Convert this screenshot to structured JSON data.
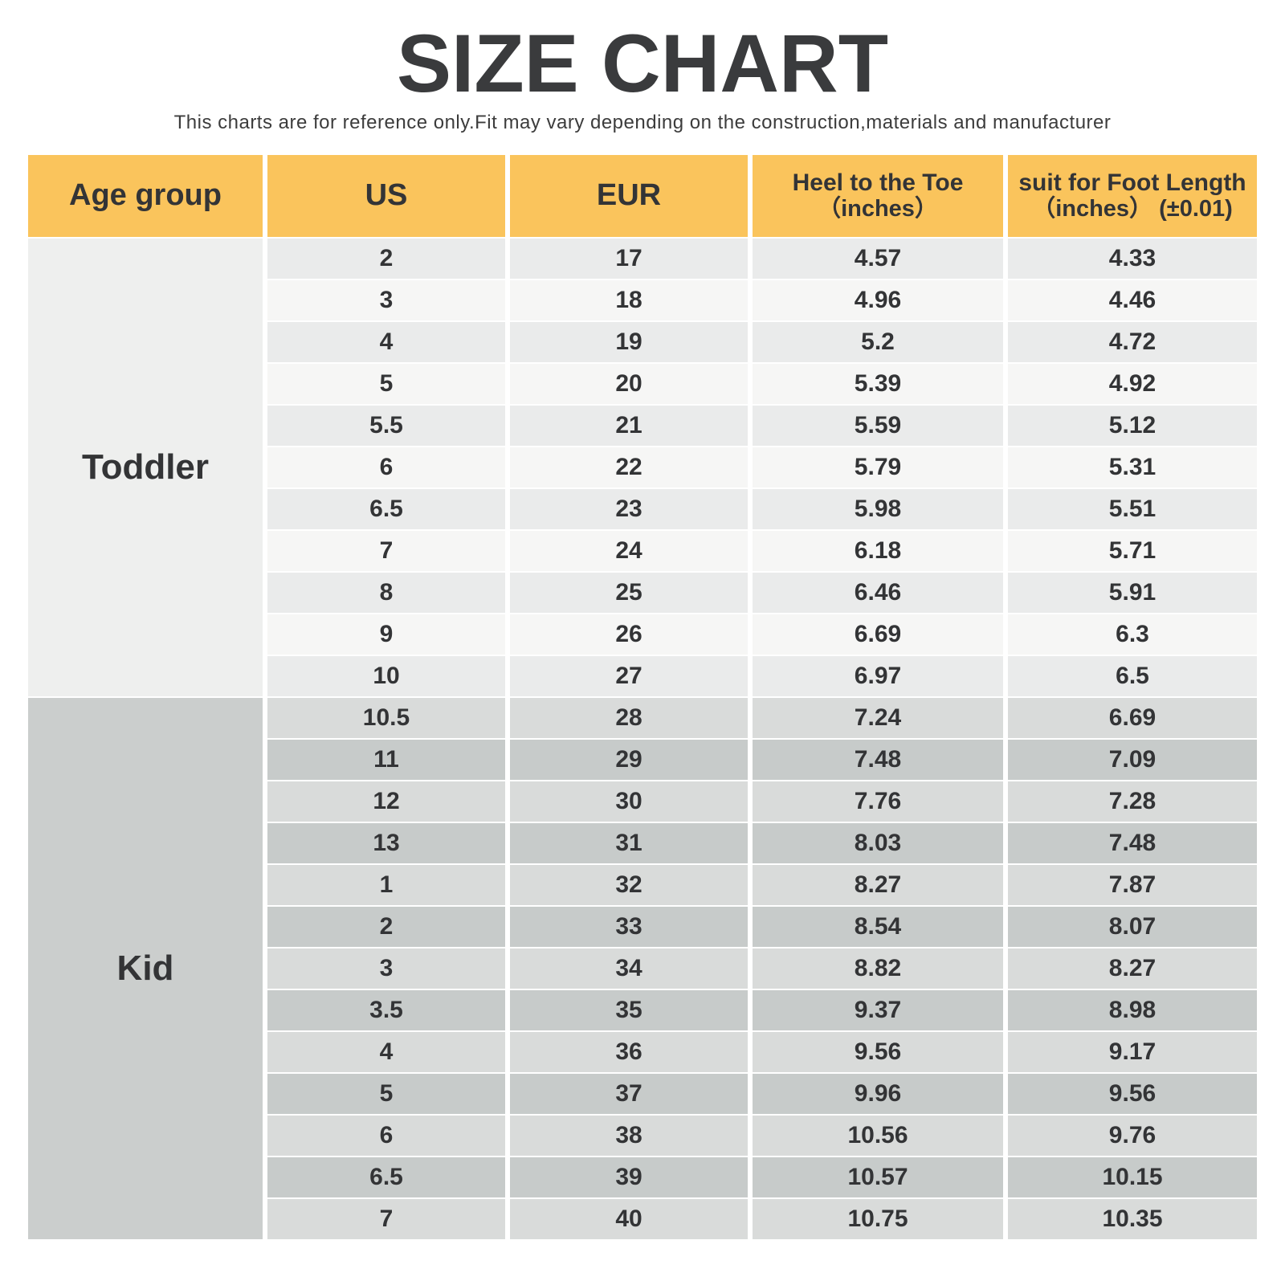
{
  "title": "SIZE CHART",
  "subtitle": "This charts are for reference only.Fit may vary depending on the construction,materials and manufacturer",
  "colors": {
    "header_bg": "#fac45c",
    "title_text": "#3a3b3d",
    "cell_text": "#333436",
    "toddler_row_odd": "#eaebeb",
    "toddler_row_even": "#f6f6f5",
    "toddler_age_cell": "#eeefee",
    "kid_row_odd": "#d9dbda",
    "kid_row_even": "#c7cbca",
    "kid_age_cell": "#cbcecd",
    "page_bg": "#ffffff"
  },
  "table": {
    "column_keys": [
      "age_group",
      "us",
      "eur",
      "heel_to_toe",
      "foot_length"
    ],
    "headers": [
      {
        "label": "Age group"
      },
      {
        "label": "US"
      },
      {
        "label": "EUR"
      },
      {
        "label": "Heel to the Toe",
        "sub": "（inches）"
      },
      {
        "label": "suit for Foot Length",
        "sub": "（inches） (±0.01)"
      }
    ],
    "sections": [
      {
        "key": "toddler",
        "label": "Toddler",
        "rows": [
          [
            "2",
            "17",
            "4.57",
            "4.33"
          ],
          [
            "3",
            "18",
            "4.96",
            "4.46"
          ],
          [
            "4",
            "19",
            "5.2",
            "4.72"
          ],
          [
            "5",
            "20",
            "5.39",
            "4.92"
          ],
          [
            "5.5",
            "21",
            "5.59",
            "5.12"
          ],
          [
            "6",
            "22",
            "5.79",
            "5.31"
          ],
          [
            "6.5",
            "23",
            "5.98",
            "5.51"
          ],
          [
            "7",
            "24",
            "6.18",
            "5.71"
          ],
          [
            "8",
            "25",
            "6.46",
            "5.91"
          ],
          [
            "9",
            "26",
            "6.69",
            "6.3"
          ],
          [
            "10",
            "27",
            "6.97",
            "6.5"
          ]
        ]
      },
      {
        "key": "kid",
        "label": "Kid",
        "rows": [
          [
            "10.5",
            "28",
            "7.24",
            "6.69"
          ],
          [
            "11",
            "29",
            "7.48",
            "7.09"
          ],
          [
            "12",
            "30",
            "7.76",
            "7.28"
          ],
          [
            "13",
            "31",
            "8.03",
            "7.48"
          ],
          [
            "1",
            "32",
            "8.27",
            "7.87"
          ],
          [
            "2",
            "33",
            "8.54",
            "8.07"
          ],
          [
            "3",
            "34",
            "8.82",
            "8.27"
          ],
          [
            "3.5",
            "35",
            "9.37",
            "8.98"
          ],
          [
            "4",
            "36",
            "9.56",
            "9.17"
          ],
          [
            "5",
            "37",
            "9.96",
            "9.56"
          ],
          [
            "6",
            "38",
            "10.56",
            "9.76"
          ],
          [
            "6.5",
            "39",
            "10.57",
            "10.15"
          ],
          [
            "7",
            "40",
            "10.75",
            "10.35"
          ]
        ]
      }
    ]
  },
  "chart_data": {
    "type": "table",
    "title": "SIZE CHART",
    "subtitle": "This charts are for reference only.Fit may vary depending on the construction,materials and manufacturer",
    "columns": [
      "Age group",
      "US",
      "EUR",
      "Heel to the Toe (inches)",
      "suit for Foot Length (inches) (±0.01)"
    ],
    "rows": [
      [
        "Toddler",
        "2",
        "17",
        "4.57",
        "4.33"
      ],
      [
        "Toddler",
        "3",
        "18",
        "4.96",
        "4.46"
      ],
      [
        "Toddler",
        "4",
        "19",
        "5.2",
        "4.72"
      ],
      [
        "Toddler",
        "5",
        "20",
        "5.39",
        "4.92"
      ],
      [
        "Toddler",
        "5.5",
        "21",
        "5.59",
        "5.12"
      ],
      [
        "Toddler",
        "6",
        "22",
        "5.79",
        "5.31"
      ],
      [
        "Toddler",
        "6.5",
        "23",
        "5.98",
        "5.51"
      ],
      [
        "Toddler",
        "7",
        "24",
        "6.18",
        "5.71"
      ],
      [
        "Toddler",
        "8",
        "25",
        "6.46",
        "5.91"
      ],
      [
        "Toddler",
        "9",
        "26",
        "6.69",
        "6.3"
      ],
      [
        "Toddler",
        "10",
        "27",
        "6.97",
        "6.5"
      ],
      [
        "Kid",
        "10.5",
        "28",
        "7.24",
        "6.69"
      ],
      [
        "Kid",
        "11",
        "29",
        "7.48",
        "7.09"
      ],
      [
        "Kid",
        "12",
        "30",
        "7.76",
        "7.28"
      ],
      [
        "Kid",
        "13",
        "31",
        "8.03",
        "7.48"
      ],
      [
        "Kid",
        "1",
        "32",
        "8.27",
        "7.87"
      ],
      [
        "Kid",
        "2",
        "33",
        "8.54",
        "8.07"
      ],
      [
        "Kid",
        "3",
        "34",
        "8.82",
        "8.27"
      ],
      [
        "Kid",
        "3.5",
        "35",
        "9.37",
        "8.98"
      ],
      [
        "Kid",
        "4",
        "36",
        "9.56",
        "9.17"
      ],
      [
        "Kid",
        "5",
        "37",
        "9.96",
        "9.56"
      ],
      [
        "Kid",
        "6",
        "38",
        "10.56",
        "9.76"
      ],
      [
        "Kid",
        "6.5",
        "39",
        "10.57",
        "10.15"
      ],
      [
        "Kid",
        "7",
        "40",
        "10.75",
        "10.35"
      ]
    ]
  }
}
